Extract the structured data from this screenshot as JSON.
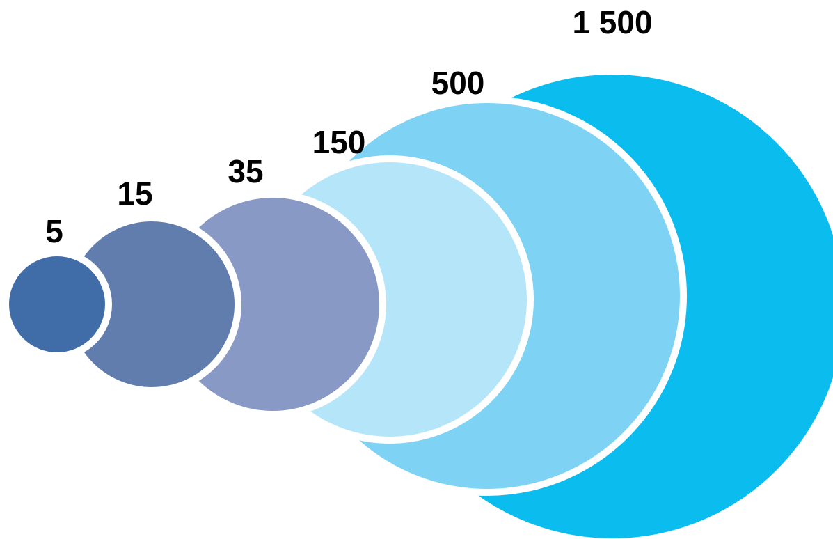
{
  "circles": [
    {
      "label": "5",
      "color": "#406ca8"
    },
    {
      "label": "15",
      "color": "#617dae"
    },
    {
      "label": "35",
      "color": "#8899c5"
    },
    {
      "label": "150",
      "color": "#b4e5f8"
    },
    {
      "label": "500",
      "color": "#7ed3f5"
    },
    {
      "label": "1 500",
      "color": "#0bbcee"
    }
  ],
  "background_color": "#ffffff"
}
